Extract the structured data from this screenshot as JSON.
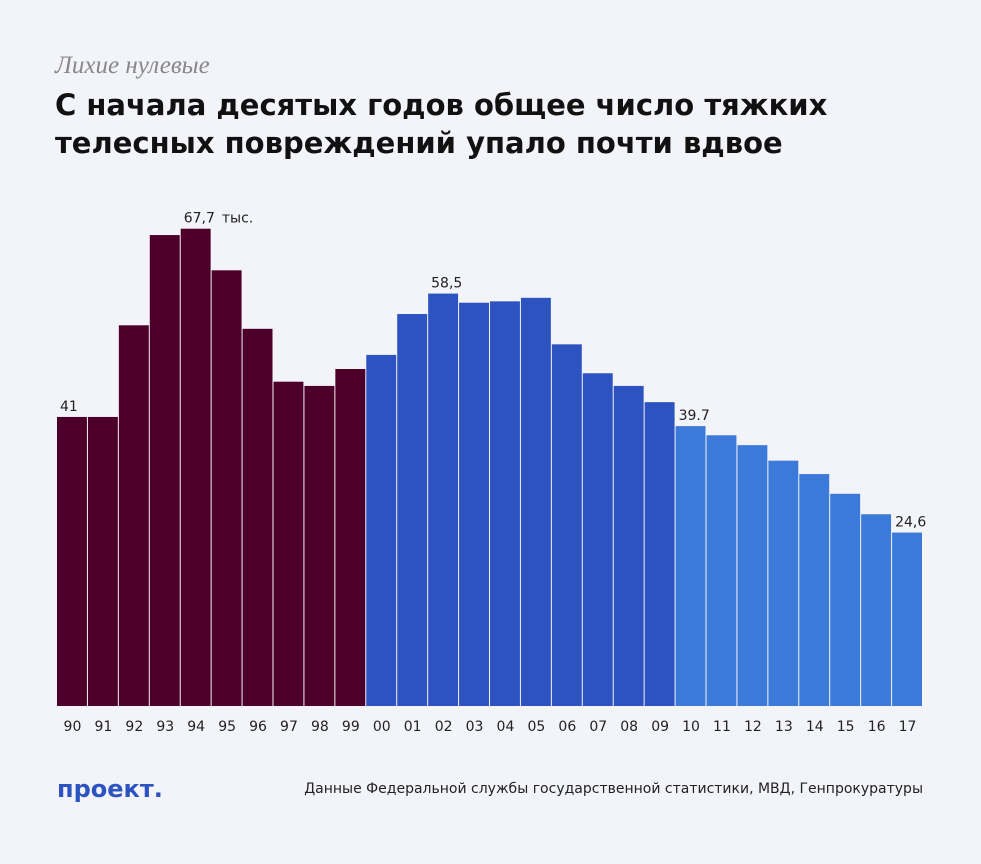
{
  "chart_data": {
    "type": "bar",
    "subtitle": "Лихие нулевые",
    "title": [
      "С начала десятых годов общее число тяжких",
      "телесных повреждений упало почти вдвое"
    ],
    "categories": [
      "90",
      "91",
      "92",
      "93",
      "94",
      "95",
      "96",
      "97",
      "98",
      "99",
      "00",
      "01",
      "02",
      "03",
      "04",
      "05",
      "06",
      "07",
      "08",
      "09",
      "10",
      "11",
      "12",
      "13",
      "14",
      "15",
      "16",
      "17"
    ],
    "values": [
      41,
      41,
      54.0,
      66.8,
      67.7,
      61.8,
      53.5,
      46.0,
      45.4,
      47.8,
      49.8,
      55.6,
      58.5,
      57.2,
      57.4,
      57.9,
      51.3,
      47.2,
      45.4,
      43.1,
      39.7,
      38.4,
      37.0,
      34.8,
      32.9,
      30.1,
      27.2,
      24.6
    ],
    "value_labels": [
      "41",
      null,
      null,
      null,
      "67,7",
      null,
      null,
      null,
      null,
      null,
      null,
      null,
      "58,5",
      null,
      null,
      null,
      null,
      null,
      null,
      null,
      "39.7",
      null,
      null,
      null,
      null,
      null,
      null,
      "24,6"
    ],
    "colors": [
      "#4d0029",
      "#4d0029",
      "#4d0029",
      "#4d0029",
      "#4d0029",
      "#4d0029",
      "#4d0029",
      "#4d0029",
      "#4d0029",
      "#4d0029",
      "#2c53c0",
      "#2c53c0",
      "#2c53c0",
      "#2c53c0",
      "#2c53c0",
      "#2c53c0",
      "#2c53c0",
      "#2c53c0",
      "#2c53c0",
      "#2c53c0",
      "#3c7ad9",
      "#3c7ad9",
      "#3c7ad9",
      "#3c7ad9",
      "#3c7ad9",
      "#3c7ad9",
      "#3c7ad9",
      "#3c7ad9"
    ],
    "unit_note": "тыс.",
    "logo": "проект.",
    "source": "Данные Федеральной службы государственной статистики, МВД, Генпрокуратуры"
  }
}
